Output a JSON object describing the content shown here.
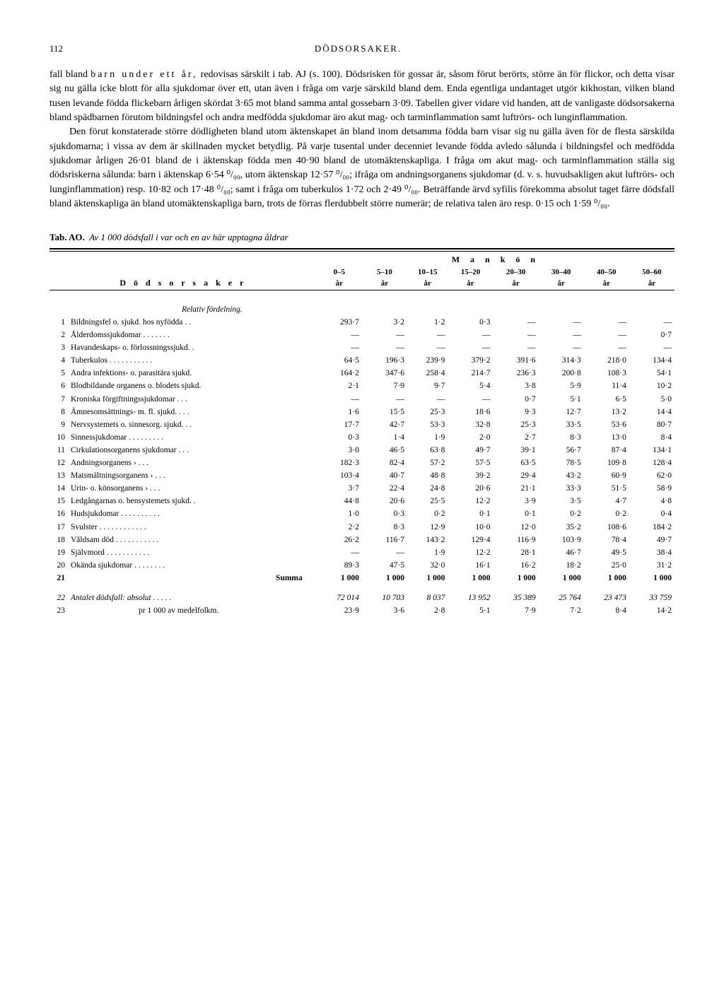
{
  "header": {
    "page": "112",
    "title": "DÖDSORSAKER."
  },
  "paragraphs": {
    "p1a": "fall bland ",
    "p1spaced": "barn under ett år,",
    "p1b": " redovisas särskilt i tab. AJ (s. 100). Dödsrisken för gossar är, såsom förut berörts, större än för flickor, och detta visar sig nu gälla icke blott för alla sjukdomar över ett, utan även i fråga om varje särskild bland dem. Enda egentliga undantaget utgör kikhostan, vilken bland tusen levande födda flickebarn årligen skördat 3·65 mot bland samma antal gossebarn 3·09. Tabellen giver vidare vid handen, att de vanligaste dödsorsakerna bland spädbarnen förutom bildningsfel och andra medfödda sjukdomar äro akut mag- och tarminflammation samt luftrörs- och lunginflammation.",
    "p2": "Den förut konstaterade större dödligheten bland utom äktenskapet än bland inom detsamma födda barn visar sig nu gälla även för de flesta särskilda sjukdomarna; i vissa av dem är skillnaden mycket betydlig. På varje tusental under decenniet levande födda avledo sålunda i bildningsfel och medfödda sjukdomar årligen 26·01 bland de i äktenskap födda men 40·90 bland de utomäktenskapliga. I fråga om akut mag- och tarminflammation ställa sig dödsriskerna sålunda: barn i äktenskap 6·54 ⁰/₀₀, utom äktenskap 12·57 ⁰/₀₀; ifråga om andningsorganens sjukdomar (d. v. s. huvudsakligen akut luftrörs- och lunginflammation) resp. 10·82 och 17·48 ⁰/₀₀; samt i fråga om tuberkulos 1·72 och 2·49 ⁰/₀₀. Beträffande ärvd syfilis förekomma absolut taget färre dödsfall bland äktenskapliga än bland utomäktenskapliga barn, trots de förras flerdubbelt större numerär; de relativa talen äro resp. 0·15 och 1·59 ⁰/₀₀."
  },
  "tablecap": {
    "tag": "Tab. AO.",
    "title": "Av 1 000 dödsfall i var och en av här upptagna åldrar"
  },
  "colhead": {
    "stub": "D ö d s o r s a k e r",
    "group": "M  a  n  k  ö  n",
    "ages": [
      "0–5 år",
      "5–10 år",
      "10–15 år",
      "15–20 år",
      "20–30 år",
      "30–40 år",
      "40–50 år",
      "50–60 år"
    ]
  },
  "relativ_label": "Relativ fördelning.",
  "rows": [
    {
      "n": "1",
      "label": "Bildningsfel o. sjukd. hos nyfödda . .",
      "v": [
        "293·7",
        "3·2",
        "1·2",
        "0·3",
        "—",
        "—",
        "—",
        "—"
      ]
    },
    {
      "n": "2",
      "label": "Ålderdomssjukdomar . . . . . . .",
      "v": [
        "—",
        "—",
        "—",
        "—",
        "—",
        "—",
        "—",
        "0·7"
      ]
    },
    {
      "n": "3",
      "label": "Havandeskaps- o. förlossningssjukd. .",
      "v": [
        "—",
        "—",
        "—",
        "—",
        "—",
        "—",
        "—",
        "—"
      ]
    },
    {
      "n": "4",
      "label": "Tuberkulos . . . . . . . . . . .",
      "v": [
        "64·5",
        "196·3",
        "239·9",
        "379·2",
        "391·6",
        "314·3",
        "218·0",
        "134·4"
      ]
    },
    {
      "n": "5",
      "label": "Andra infektions- o. parasitära sjukd.",
      "v": [
        "164·2",
        "347·6",
        "258·4",
        "214·7",
        "236·3",
        "200·8",
        "108·3",
        "54·1"
      ]
    },
    {
      "n": "6",
      "label": "Blodbildande organens o. blodets sjukd.",
      "v": [
        "2·1",
        "7·9",
        "9·7",
        "5·4",
        "3·8",
        "5·9",
        "11·4",
        "10·2"
      ]
    },
    {
      "n": "7",
      "label": "Kroniska förgiftningssjukdomar . . .",
      "v": [
        "—",
        "—",
        "—",
        "—",
        "0·7",
        "5·1",
        "6·5",
        "5·0"
      ]
    },
    {
      "n": "8",
      "label": "Ämnesomsättnings- m. fl. sjukd. . . .",
      "v": [
        "1·6",
        "15·5",
        "25·3",
        "18·6",
        "9·3",
        "12·7",
        "13·2",
        "14·4"
      ]
    },
    {
      "n": "9",
      "label": "Nervsystemets o. sinnesorg. sjukd. . .",
      "v": [
        "17·7",
        "42·7",
        "53·3",
        "32·8",
        "25·3",
        "33·5",
        "53·6",
        "80·7"
      ]
    },
    {
      "n": "10",
      "label": "Sinnessjukdomar . . . . . . . . .",
      "v": [
        "0·3",
        "1·4",
        "1·9",
        "2·0",
        "2·7",
        "8·3",
        "13·0",
        "8·4"
      ]
    },
    {
      "n": "11",
      "label": "Cirkulationsorganens sjukdomar . . .",
      "v": [
        "3·0",
        "46·5",
        "63·8",
        "49·7",
        "39·1",
        "56·7",
        "87·4",
        "134·1"
      ]
    },
    {
      "n": "12",
      "label": "Andningsorganens        ›      . . .",
      "v": [
        "182·3",
        "82·4",
        "57·2",
        "57·5",
        "63·5",
        "78·5",
        "109·8",
        "128·4"
      ]
    },
    {
      "n": "13",
      "label": "Matsmältningsorganens   ›   . . .",
      "v": [
        "103·4",
        "40·7",
        "48·8",
        "39·2",
        "29·4",
        "43·2",
        "60·9",
        "62·0"
      ]
    },
    {
      "n": "14",
      "label": "Urin- o. könsorganens    ›   . . .",
      "v": [
        "3·7",
        "22·4",
        "24·8",
        "20·6",
        "21·1",
        "33·3",
        "51·5",
        "58·9"
      ]
    },
    {
      "n": "15",
      "label": "Ledgångarnas o. bensystemets sjukd. .",
      "v": [
        "44·8",
        "20·6",
        "25·5",
        "12·2",
        "3·9",
        "3·5",
        "4·7",
        "4·8"
      ]
    },
    {
      "n": "16",
      "label": "Hudsjukdomar . . . . . . . . . .",
      "v": [
        "1·0",
        "0·3",
        "0·2",
        "0·1",
        "0·1",
        "0·2",
        "0·2",
        "0·4"
      ]
    },
    {
      "n": "17",
      "label": "Svulster . . . . . . . . . . . .",
      "v": [
        "2·2",
        "8·3",
        "12·9",
        "10·0",
        "12·0",
        "35·2",
        "108·6",
        "184·2"
      ]
    },
    {
      "n": "18",
      "label": "Våldsam död . . . . . . . . . . .",
      "v": [
        "26·2",
        "116·7",
        "143·2",
        "129·4",
        "116·9",
        "103·9",
        "78·4",
        "49·7"
      ]
    },
    {
      "n": "19",
      "label": "Självmord . . . . . . . . . . .",
      "v": [
        "—",
        "—",
        "1·9",
        "12·2",
        "28·1",
        "46·7",
        "49·5",
        "38·4"
      ]
    },
    {
      "n": "20",
      "label": "Okända sjukdomar . . . . . . . .",
      "v": [
        "89·3",
        "47·5",
        "32·0",
        "16·1",
        "16·2",
        "18·2",
        "25·0",
        "31·2"
      ]
    }
  ],
  "sumrow": {
    "n": "21",
    "label": "Summa",
    "v": [
      "1 000",
      "1 000",
      "1 000",
      "1 000",
      "1 000",
      "1 000",
      "1 000",
      "1 000"
    ]
  },
  "ant1": {
    "n": "22",
    "label": "Antalet dödsfall: absolut . . . . .",
    "v": [
      "72 014",
      "10 703",
      "8 037",
      "13 952",
      "35 389",
      "25 764",
      "23 473",
      "33 759"
    ]
  },
  "ant2": {
    "n": "23",
    "label": "pr 1 000 av medelfolkm.",
    "v": [
      "23·9",
      "3·6",
      "2·8",
      "5·1",
      "7·9",
      "7·2",
      "8·4",
      "14·2"
    ]
  }
}
